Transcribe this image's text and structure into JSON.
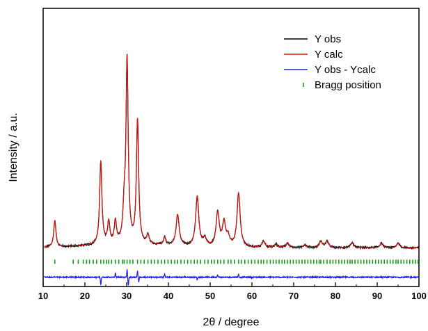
{
  "chart_data": {
    "type": "line",
    "xlabel": "2θ / degree",
    "ylabel": "Intensity / a.u.",
    "xlim": [
      10,
      100
    ],
    "ylim": [
      -0.25,
      1.55
    ],
    "x_ticks": [
      10,
      20,
      30,
      40,
      50,
      60,
      70,
      80,
      90,
      100
    ],
    "y_ticks_labeled": false,
    "grid": false,
    "legend_position": "top-right",
    "baseline_y": 0.0,
    "bragg_row_y": -0.09,
    "diff_offset_y": -0.19,
    "colors": {
      "obs": "#000000",
      "calc": "#e01010",
      "diff": "#1a1aff",
      "bragg": "#1a9a1a"
    },
    "legend": [
      {
        "label": "Y obs",
        "marker": "line",
        "color": "#000000"
      },
      {
        "label": "Y calc",
        "marker": "line",
        "color": "#e01010"
      },
      {
        "label": "Y obs - Ycalc",
        "marker": "line",
        "color": "#1a1aff"
      },
      {
        "label": "Bragg position",
        "marker": "tick",
        "color": "#1a9a1a"
      }
    ],
    "peaks": [
      {
        "x": 12.8,
        "y": 0.17
      },
      {
        "x": 23.8,
        "y": 0.54
      },
      {
        "x": 25.7,
        "y": 0.14
      },
      {
        "x": 27.3,
        "y": 0.14
      },
      {
        "x": 29.4,
        "y": 0.19
      },
      {
        "x": 30.1,
        "y": 1.18
      },
      {
        "x": 32.6,
        "y": 0.8
      },
      {
        "x": 35.1,
        "y": 0.06
      },
      {
        "x": 39.1,
        "y": 0.05
      },
      {
        "x": 42.2,
        "y": 0.2
      },
      {
        "x": 46.9,
        "y": 0.32
      },
      {
        "x": 48.7,
        "y": 0.05
      },
      {
        "x": 51.8,
        "y": 0.22
      },
      {
        "x": 53.3,
        "y": 0.15
      },
      {
        "x": 54.3,
        "y": 0.06
      },
      {
        "x": 56.8,
        "y": 0.35
      },
      {
        "x": 62.8,
        "y": 0.04
      },
      {
        "x": 65.8,
        "y": 0.02
      },
      {
        "x": 68.5,
        "y": 0.03
      },
      {
        "x": 72.7,
        "y": 0.02
      },
      {
        "x": 76.5,
        "y": 0.04
      },
      {
        "x": 78.0,
        "y": 0.04
      },
      {
        "x": 84.0,
        "y": 0.03
      },
      {
        "x": 91.0,
        "y": 0.03
      },
      {
        "x": 95.0,
        "y": 0.03
      }
    ],
    "bragg_positions": [
      12.8,
      17.2,
      18.4,
      19.6,
      20.4,
      21.1,
      22.0,
      22.8,
      23.8,
      24.5,
      25.2,
      25.7,
      26.4,
      27.3,
      28.1,
      29.0,
      29.4,
      30.1,
      30.8,
      31.5,
      32.6,
      33.4,
      34.2,
      35.1,
      35.9,
      36.7,
      37.5,
      38.3,
      39.1,
      39.9,
      40.7,
      41.5,
      42.2,
      43.0,
      43.8,
      44.6,
      45.4,
      46.2,
      46.9,
      47.7,
      48.7,
      49.5,
      50.3,
      51.0,
      51.8,
      52.5,
      53.3,
      54.3,
      55.0,
      55.8,
      56.8,
      57.5,
      58.3,
      59.1,
      59.9,
      60.7,
      61.5,
      62.2,
      62.8,
      63.6,
      64.4,
      65.1,
      65.8,
      66.5,
      67.2,
      67.8,
      68.5,
      69.2,
      69.9,
      70.6,
      71.3,
      72.0,
      72.7,
      73.4,
      74.1,
      74.8,
      75.5,
      76.1,
      76.5,
      77.2,
      78.0,
      78.7,
      79.4,
      80.1,
      80.8,
      81.5,
      82.2,
      82.9,
      83.5,
      84.0,
      84.7,
      85.4,
      86.1,
      86.8,
      87.5,
      88.2,
      88.9,
      89.6,
      90.3,
      91.0,
      91.7,
      92.4,
      93.1,
      93.8,
      94.5,
      95.0,
      95.7,
      96.4,
      97.1,
      97.8,
      98.5,
      99.2,
      99.8
    ],
    "difference_spikes": [
      {
        "x": 23.8,
        "y": -0.05
      },
      {
        "x": 27.3,
        "y": 0.03
      },
      {
        "x": 30.1,
        "y": 0.05
      },
      {
        "x": 30.4,
        "y": -0.05
      },
      {
        "x": 32.6,
        "y": 0.04
      },
      {
        "x": 32.9,
        "y": -0.03
      },
      {
        "x": 39.1,
        "y": 0.02
      },
      {
        "x": 46.9,
        "y": -0.015
      },
      {
        "x": 51.8,
        "y": 0.015
      },
      {
        "x": 56.8,
        "y": 0.02
      }
    ]
  }
}
